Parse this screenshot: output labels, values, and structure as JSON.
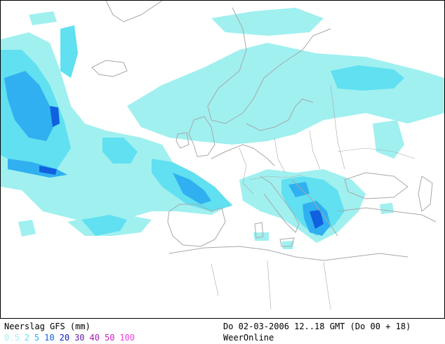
{
  "legend": {
    "title": "Neerslag GFS (mm)",
    "levels": [
      {
        "label": "0.5",
        "color": "#a0f0f0"
      },
      {
        "label": "2",
        "color": "#60e0f0"
      },
      {
        "label": "5",
        "color": "#30b0f0"
      },
      {
        "label": "10",
        "color": "#1060e0"
      },
      {
        "label": "20",
        "color": "#1020c0"
      },
      {
        "label": "30",
        "color": "#6020a0"
      },
      {
        "label": "40",
        "color": "#a020b0"
      },
      {
        "label": "50",
        "color": "#d020c0"
      },
      {
        "label": "100",
        "color": "#f040e0"
      }
    ]
  },
  "valid_time": "Do 02-03-2006 12..18 GMT (Do 00 + 18)",
  "provider": "WeerOnline",
  "colors": {
    "coastline": "#a8a8a8",
    "frame": "#000000",
    "background": "#ffffff"
  }
}
